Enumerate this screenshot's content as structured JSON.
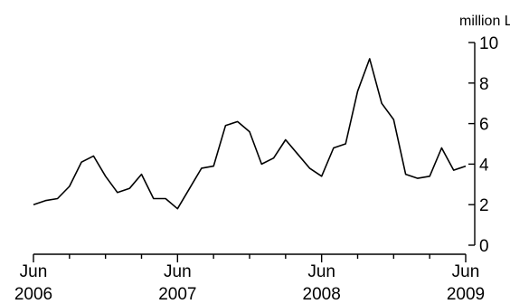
{
  "chart_data": {
    "type": "line",
    "title": "",
    "xlabel": "",
    "ylabel": "million L",
    "ylim": [
      0,
      10
    ],
    "yticks": [
      0,
      2,
      4,
      6,
      8,
      10
    ],
    "y_axis_side": "right",
    "grid": false,
    "x_tick_labels": [
      {
        "month": "Jun",
        "year": "2006"
      },
      {
        "month": "Jun",
        "year": "2007"
      },
      {
        "month": "Jun",
        "year": "2008"
      },
      {
        "month": "Jun",
        "year": "2009"
      }
    ],
    "series": [
      {
        "color": "#000000",
        "x": [
          "2006-06",
          "2006-07",
          "2006-08",
          "2006-09",
          "2006-10",
          "2006-11",
          "2006-12",
          "2007-01",
          "2007-02",
          "2007-03",
          "2007-04",
          "2007-05",
          "2007-06",
          "2007-07",
          "2007-08",
          "2007-09",
          "2007-10",
          "2007-11",
          "2007-12",
          "2008-01",
          "2008-02",
          "2008-03",
          "2008-04",
          "2008-05",
          "2008-06",
          "2008-07",
          "2008-08",
          "2008-09",
          "2008-10",
          "2008-11",
          "2008-12",
          "2009-01",
          "2009-02",
          "2009-03",
          "2009-04",
          "2009-05",
          "2009-06"
        ],
        "values": [
          2.0,
          2.2,
          2.3,
          2.9,
          4.1,
          4.4,
          3.4,
          2.6,
          2.8,
          3.5,
          2.3,
          2.3,
          1.8,
          2.8,
          3.8,
          3.9,
          5.9,
          6.1,
          5.6,
          4.0,
          4.3,
          5.2,
          4.5,
          3.8,
          3.4,
          4.8,
          5.0,
          7.6,
          9.2,
          7.0,
          6.2,
          3.5,
          3.3,
          3.4,
          4.8,
          3.7,
          3.9
        ]
      }
    ]
  }
}
